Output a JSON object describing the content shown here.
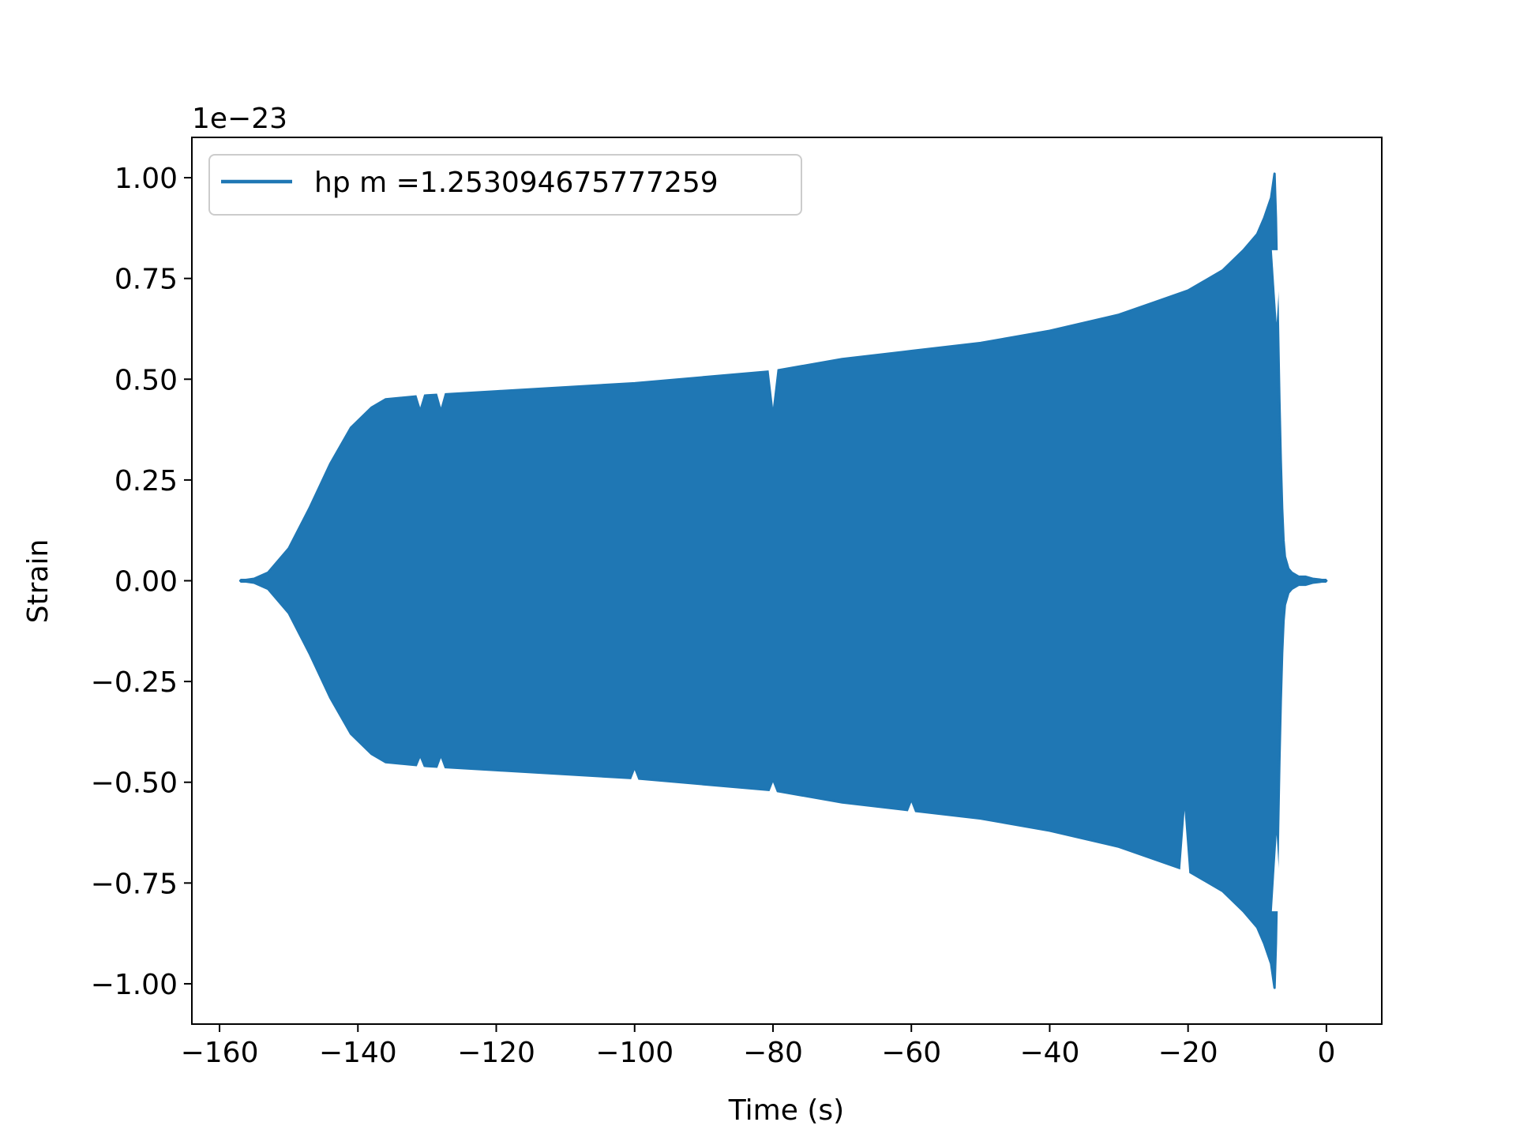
{
  "chart_data": {
    "type": "line",
    "title": "",
    "xlabel": "Time (s)",
    "ylabel": "Strain",
    "y_offset_label": "1e−23",
    "xlim": [
      -164,
      8
    ],
    "ylim": [
      -1.1,
      1.1
    ],
    "x_ticks": [
      {
        "value": -160,
        "label": "−160"
      },
      {
        "value": -140,
        "label": "−140"
      },
      {
        "value": -120,
        "label": "−120"
      },
      {
        "value": -100,
        "label": "−100"
      },
      {
        "value": -80,
        "label": "−80"
      },
      {
        "value": -60,
        "label": "−60"
      },
      {
        "value": -40,
        "label": "−40"
      },
      {
        "value": -20,
        "label": "−20"
      },
      {
        "value": 0,
        "label": "0"
      }
    ],
    "y_ticks": [
      {
        "value": 1.0,
        "label": "1.00"
      },
      {
        "value": 0.75,
        "label": "0.75"
      },
      {
        "value": 0.5,
        "label": "0.50"
      },
      {
        "value": 0.25,
        "label": "0.25"
      },
      {
        "value": 0.0,
        "label": "0.00"
      },
      {
        "value": -0.25,
        "label": "−0.25"
      },
      {
        "value": -0.5,
        "label": "−0.50"
      },
      {
        "value": -0.75,
        "label": "−0.75"
      },
      {
        "value": -1.0,
        "label": "−1.00"
      }
    ],
    "grid": false,
    "legend": {
      "placement": "upper-left"
    },
    "series": [
      {
        "name": "hp m =1.253094675777259",
        "color": "#1f77b4",
        "style": "oscillating waveform, filled envelope",
        "envelope_upper": {
          "x": [
            -157,
            -155,
            -153,
            -150,
            -147,
            -144,
            -141,
            -138,
            -136,
            -130,
            -120,
            -100,
            -80,
            -70,
            -60,
            -50,
            -40,
            -30,
            -20,
            -15,
            -12,
            -10,
            -9,
            -8,
            -7.5,
            -7.3,
            -7,
            -6.8,
            -6.6,
            -6.4,
            -6.2,
            -6,
            -5.5,
            -5,
            -4,
            -3,
            -2,
            -1,
            0
          ],
          "y": [
            0.0,
            0.005,
            0.02,
            0.08,
            0.18,
            0.29,
            0.38,
            0.43,
            0.45,
            0.46,
            0.47,
            0.49,
            0.52,
            0.55,
            0.57,
            0.59,
            0.62,
            0.66,
            0.72,
            0.77,
            0.82,
            0.86,
            0.9,
            0.95,
            1.01,
            0.9,
            0.63,
            0.45,
            0.3,
            0.18,
            0.1,
            0.06,
            0.03,
            0.02,
            0.01,
            0.01,
            0.005,
            0.003,
            0.0
          ]
        },
        "envelope_lower": {
          "x": [
            -157,
            -155,
            -153,
            -150,
            -147,
            -144,
            -141,
            -138,
            -136,
            -130,
            -120,
            -100,
            -80,
            -70,
            -60,
            -50,
            -40,
            -30,
            -20,
            -15,
            -12,
            -10,
            -9,
            -8,
            -7.5,
            -7.3,
            -7,
            -6.8,
            -6.6,
            -6.4,
            -6.2,
            -6,
            -5.5,
            -5,
            -4,
            -3,
            -2,
            -1,
            0
          ],
          "y": [
            0.0,
            -0.005,
            -0.02,
            -0.08,
            -0.18,
            -0.29,
            -0.38,
            -0.43,
            -0.45,
            -0.46,
            -0.47,
            -0.49,
            -0.52,
            -0.55,
            -0.57,
            -0.59,
            -0.62,
            -0.66,
            -0.72,
            -0.77,
            -0.82,
            -0.86,
            -0.9,
            -0.95,
            -1.01,
            -0.9,
            -0.63,
            -0.45,
            -0.3,
            -0.18,
            -0.1,
            -0.06,
            -0.03,
            -0.02,
            -0.01,
            -0.01,
            -0.005,
            -0.003,
            0.0
          ]
        },
        "notches": [
          {
            "x": -80,
            "upper": 0.43,
            "lower": -0.5
          },
          {
            "x": -20.5,
            "upper": 0.72,
            "lower": -0.57
          },
          {
            "x": -131,
            "upper": 0.43,
            "lower": -0.44
          },
          {
            "x": -128,
            "upper": 0.43,
            "lower": -0.44
          },
          {
            "x": -100,
            "upper": 0.49,
            "lower": -0.47
          },
          {
            "x": -60,
            "upper": 0.57,
            "lower": -0.55
          },
          {
            "x": -7.2,
            "upper": 0.64,
            "lower": -0.63
          }
        ]
      }
    ]
  }
}
